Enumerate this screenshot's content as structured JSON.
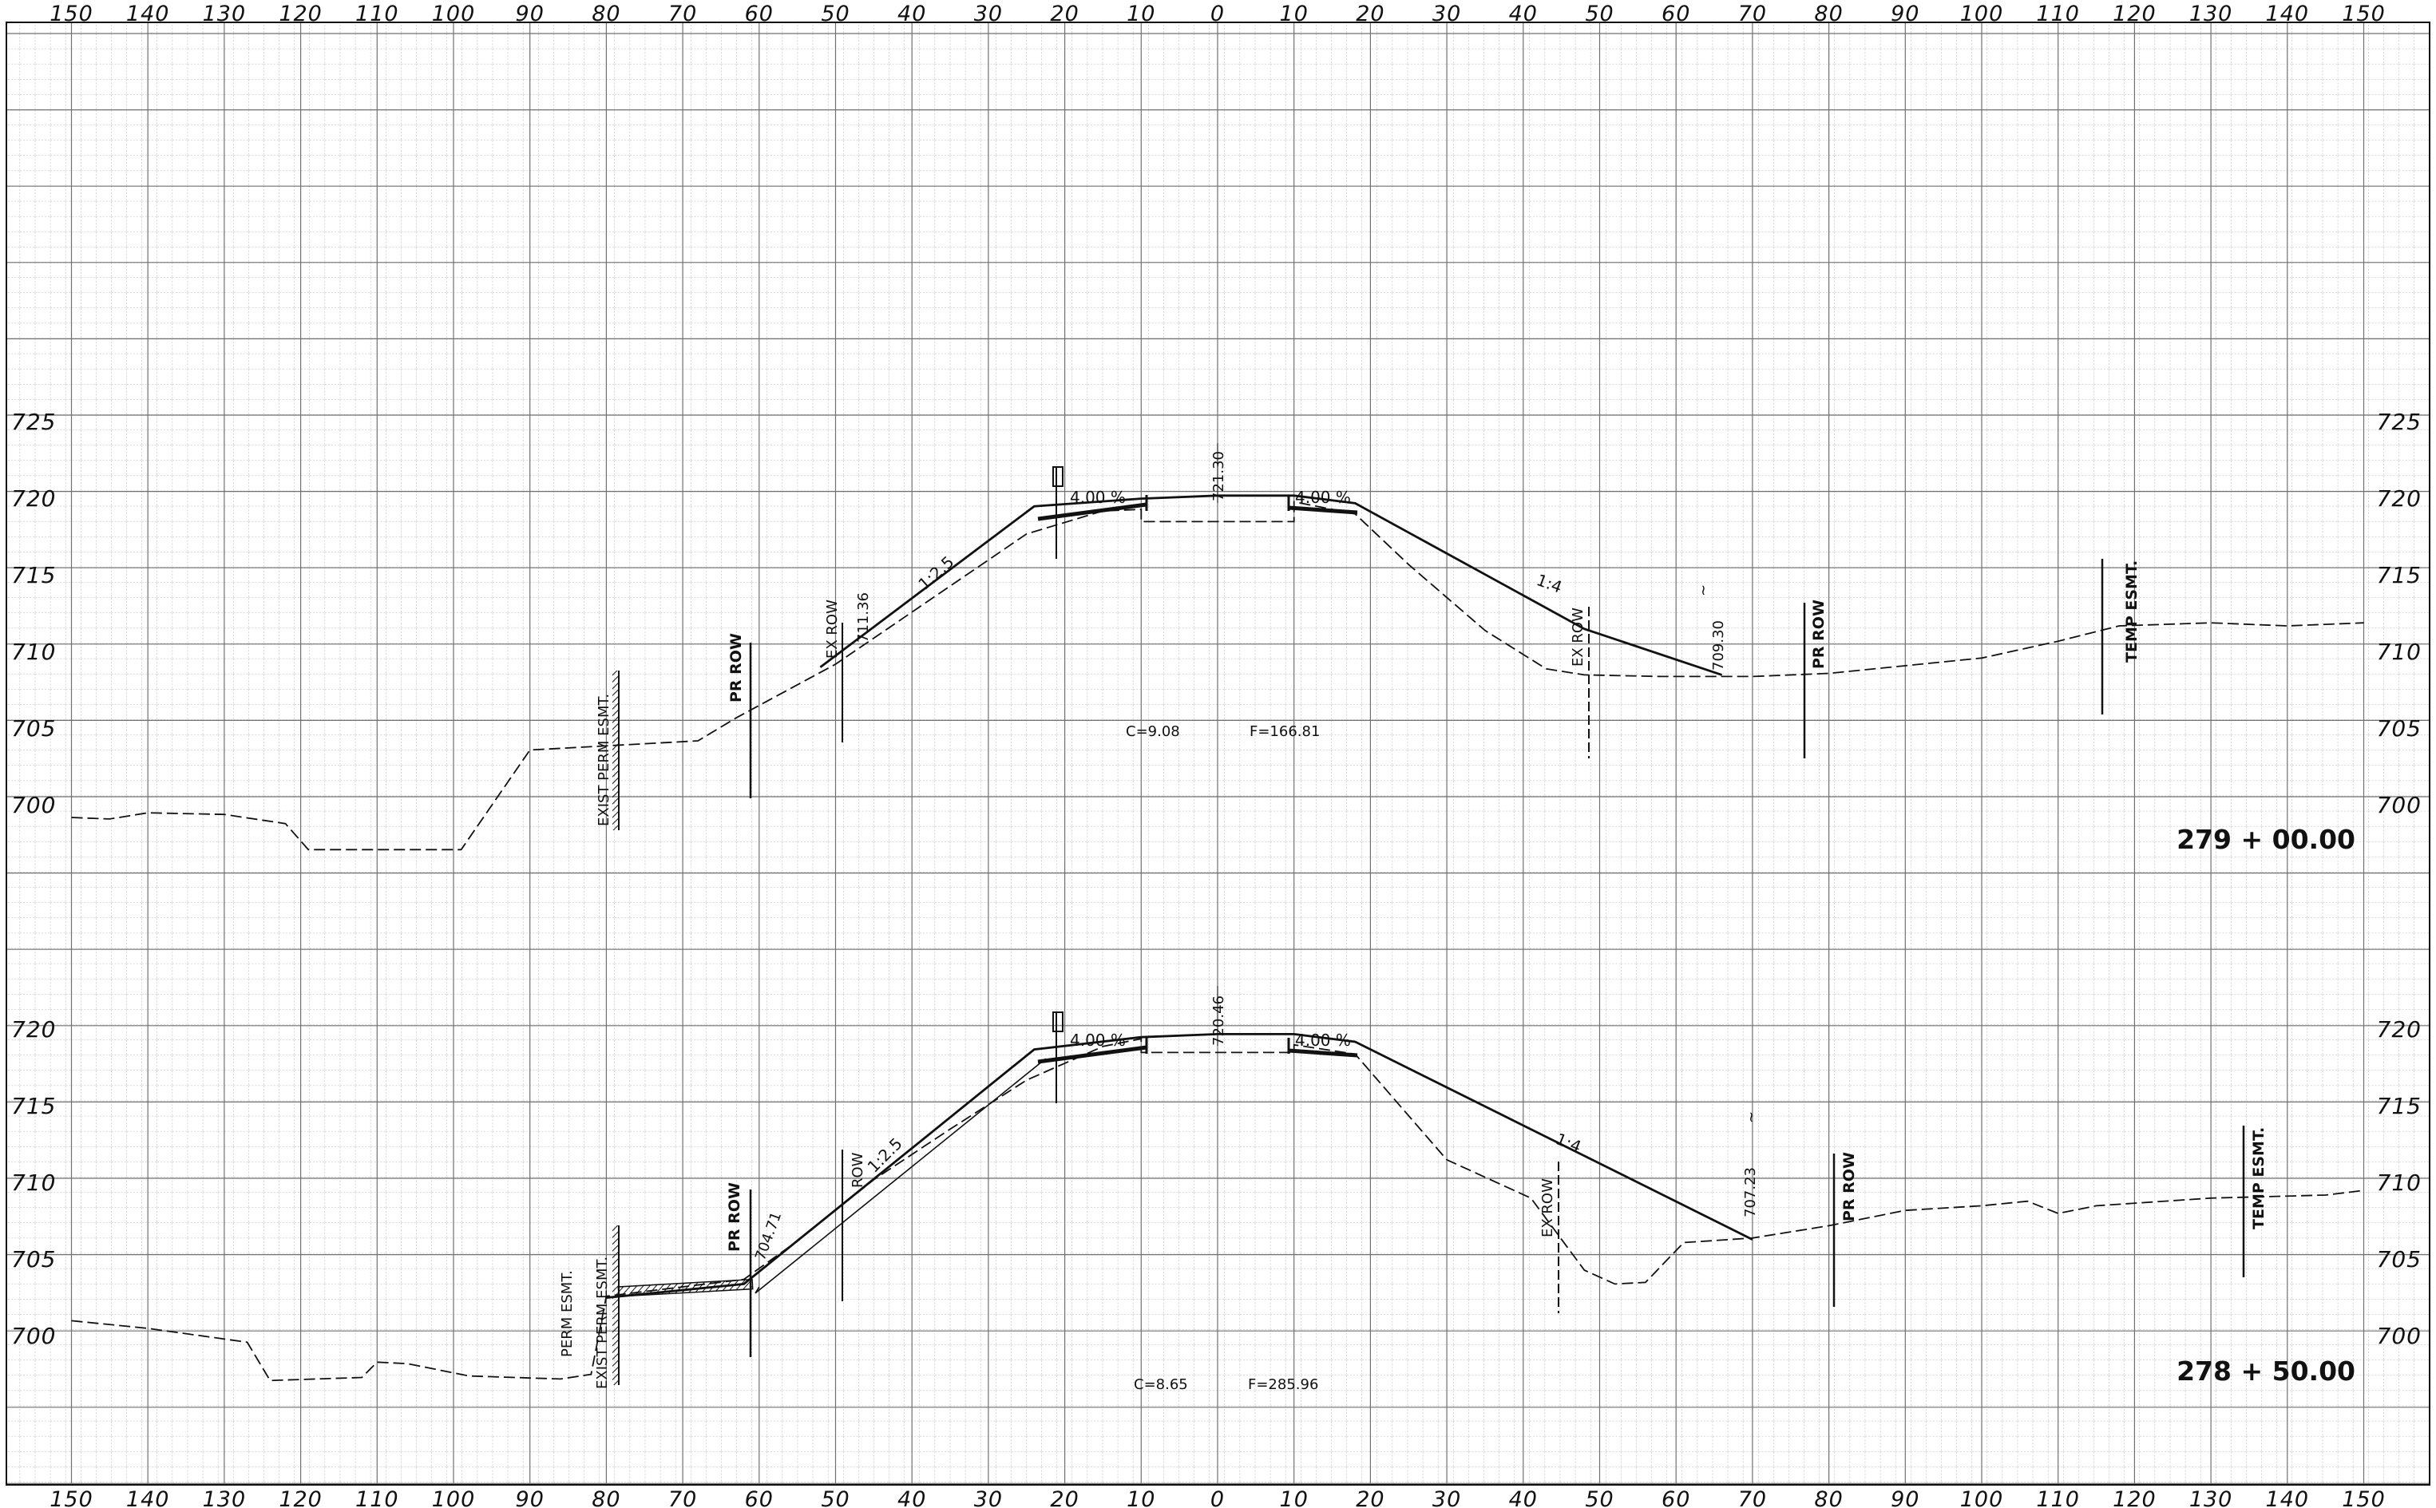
{
  "drawing": {
    "x_axis_ticks": [
      "150",
      "140",
      "130",
      "120",
      "110",
      "100",
      "90",
      "80",
      "70",
      "60",
      "50",
      "40",
      "30",
      "20",
      "10",
      "0",
      "10",
      "20",
      "30",
      "40",
      "50",
      "60",
      "70",
      "80",
      "90",
      "100",
      "110",
      "120",
      "130",
      "140",
      "150"
    ],
    "x_values": [
      -150,
      -140,
      -130,
      -120,
      -110,
      -100,
      -90,
      -80,
      -70,
      -60,
      -50,
      -40,
      -30,
      -20,
      -10,
      0,
      10,
      20,
      30,
      40,
      50,
      60,
      70,
      80,
      90,
      100,
      110,
      120,
      130,
      140,
      150
    ]
  },
  "sections": [
    {
      "station": "279 + 00.00",
      "elevation_ticks": [
        "725",
        "720",
        "715",
        "710",
        "705",
        "700"
      ],
      "elevation_values": [
        725,
        720,
        715,
        710,
        705,
        700
      ],
      "cut_fill": {
        "cut": "C=9.08",
        "fill": "F=166.81"
      },
      "pavement_slopes": [
        "4.00 %",
        "4.00 %"
      ],
      "grade_elevation": "721.30",
      "side_slopes": [
        "1:2.5",
        "1:4"
      ],
      "annotations": [
        "EXIST PERM ESMT.",
        "PR ROW",
        "EX ROW",
        "711.36",
        "EX ROW",
        "709.30",
        "PR ROW",
        "TEMP ESMT."
      ],
      "existing_ground": [
        [
          -150,
          700.0
        ],
        [
          -145,
          699.9
        ],
        [
          -140,
          700.3
        ],
        [
          -130,
          700.2
        ],
        [
          -122,
          699.6
        ],
        [
          -119,
          697.9
        ],
        [
          -99,
          697.9
        ],
        [
          -90,
          704.4
        ],
        [
          -68,
          705.0
        ],
        [
          -63,
          706.5
        ],
        [
          -50,
          710.0
        ],
        [
          -25,
          718.5
        ],
        [
          -15,
          720.0
        ],
        [
          -10,
          720.1
        ],
        [
          -10,
          719.3
        ],
        [
          10,
          719.3
        ],
        [
          10,
          720.6
        ],
        [
          18,
          719.8
        ],
        [
          25,
          716.5
        ],
        [
          35,
          712.2
        ],
        [
          43,
          709.7
        ],
        [
          48,
          709.3
        ],
        [
          58,
          709.2
        ],
        [
          70,
          709.2
        ],
        [
          80,
          709.4
        ],
        [
          100,
          710.4
        ],
        [
          110,
          711.5
        ],
        [
          118,
          712.5
        ],
        [
          130,
          712.7
        ],
        [
          140,
          712.5
        ],
        [
          150,
          712.7
        ]
      ],
      "proposed_section": [
        [
          -52,
          709.8
        ],
        [
          -24,
          720.3
        ],
        [
          -10,
          720.8
        ],
        [
          0,
          721.0
        ],
        [
          10,
          721.0
        ],
        [
          18,
          720.5
        ],
        [
          48,
          712.3
        ],
        [
          66,
          709.3
        ]
      ]
    },
    {
      "station": "278 + 50.00",
      "elevation_ticks": [
        "720",
        "715",
        "710",
        "705",
        "700"
      ],
      "elevation_values": [
        720,
        715,
        710,
        705,
        700
      ],
      "cut_fill": {
        "cut": "C=8.65",
        "fill": "F=285.96"
      },
      "pavement_slopes": [
        "4.00 %",
        "4.00 %"
      ],
      "grade_elevation": "720.46",
      "side_slopes": [
        "1:2.5",
        "1:4"
      ],
      "annotations": [
        "PERM ESMT.",
        "EXIST PERM ESMT.",
        "PR ROW",
        "704.71",
        "ROW",
        "EX ROW",
        "707.23",
        "PR ROW",
        "TEMP ESMT."
      ],
      "existing_ground": [
        [
          -150,
          701.8
        ],
        [
          -140,
          701.3
        ],
        [
          -127,
          700.4
        ],
        [
          -124,
          697.9
        ],
        [
          -112,
          698.1
        ],
        [
          -110,
          699.1
        ],
        [
          -106,
          699.0
        ],
        [
          -98,
          698.2
        ],
        [
          -86,
          698.0
        ],
        [
          -82,
          698.3
        ],
        [
          -80,
          703.4
        ],
        [
          -62,
          704.5
        ],
        [
          -55,
          707.0
        ],
        [
          -45,
          711.0
        ],
        [
          -35,
          714.3
        ],
        [
          -25,
          717.5
        ],
        [
          -15,
          719.7
        ],
        [
          -10,
          720.2
        ],
        [
          -10,
          719.3
        ],
        [
          10,
          719.3
        ],
        [
          10,
          719.8
        ],
        [
          18,
          719.2
        ],
        [
          30,
          712.3
        ],
        [
          41,
          709.8
        ],
        [
          48,
          705.1
        ],
        [
          52,
          704.2
        ],
        [
          56,
          704.3
        ],
        [
          61,
          706.9
        ],
        [
          70,
          707.2
        ],
        [
          80,
          708.0
        ],
        [
          90,
          709.0
        ],
        [
          100,
          709.3
        ],
        [
          106,
          709.6
        ],
        [
          110,
          708.8
        ],
        [
          115,
          709.3
        ],
        [
          130,
          709.8
        ],
        [
          145,
          710.0
        ],
        [
          150,
          710.3
        ]
      ],
      "proposed_section": [
        [
          -80,
          703.3
        ],
        [
          -62,
          704.2
        ],
        [
          -24,
          719.5
        ],
        [
          -10,
          720.3
        ],
        [
          0,
          720.5
        ],
        [
          10,
          720.5
        ],
        [
          18,
          720.0
        ],
        [
          70,
          707.1
        ]
      ]
    }
  ]
}
